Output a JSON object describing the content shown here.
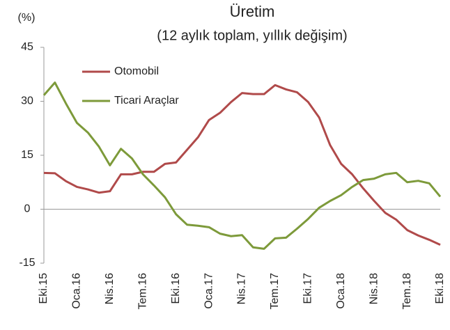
{
  "chart_data": {
    "type": "line",
    "title": "Üretim",
    "subtitle": "(12 aylık toplam, yıllık değişim)",
    "y_label": "(%)",
    "categories": [
      "Eki.15",
      null,
      null,
      "Oca.16",
      null,
      null,
      "Nis.16",
      null,
      null,
      "Tem.16",
      null,
      null,
      "Eki.16",
      null,
      null,
      "Oca.17",
      null,
      null,
      "Nis.17",
      null,
      null,
      "Tem.17",
      null,
      null,
      "Eki.17",
      null,
      null,
      "Oca.18",
      null,
      null,
      "Nis.18",
      null,
      null,
      "Tem.18",
      null,
      null,
      "Eki.18"
    ],
    "series": [
      {
        "name": "Otomobil",
        "color": "#b04a4a",
        "values": [
          10.1,
          10,
          7.8,
          6.2,
          5.5,
          4.6,
          5,
          9.7,
          9.7,
          10.4,
          10.4,
          12.6,
          13,
          16.5,
          20,
          24.8,
          26.8,
          29.8,
          32.3,
          32,
          32,
          34.5,
          33.3,
          32.5,
          29.8,
          25.5,
          17.8,
          12.6,
          9.7,
          5.8,
          2.3,
          -1,
          -2.9,
          -5.8,
          -7.3,
          -8.5,
          -9.9
        ]
      },
      {
        "name": "Ticari Araçlar",
        "color": "#7d9a3a",
        "values": [
          31.7,
          35.2,
          29.4,
          24,
          21.3,
          17.4,
          12.2,
          16.8,
          14.1,
          9.7,
          6.6,
          3.3,
          -1.4,
          -4.3,
          -4.6,
          -5,
          -6.8,
          -7.5,
          -7.2,
          -10.6,
          -11,
          -8.1,
          -7.9,
          -5.4,
          -2.7,
          0.4,
          2.3,
          3.9,
          6.2,
          8.1,
          8.5,
          9.7,
          10.1,
          7.5,
          7.9,
          7.2,
          3.5
        ]
      }
    ],
    "ylim": [
      -15,
      45
    ],
    "yticks": [
      -15,
      0,
      15,
      30,
      45
    ],
    "grid": false,
    "legend": "top"
  }
}
